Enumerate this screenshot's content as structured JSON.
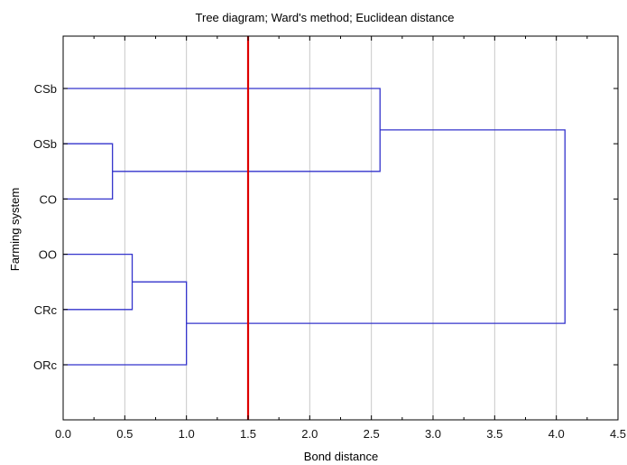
{
  "chart_data": {
    "type": "dendrogram",
    "title": "Tree diagram; Ward's method; Euclidean distance",
    "xlabel": "Bond distance",
    "ylabel": "Farming system",
    "xlim": [
      0.0,
      4.5
    ],
    "x_ticks": [
      "0.0",
      "0.5",
      "1.0",
      "1.5",
      "2.0",
      "2.5",
      "3.0",
      "3.5",
      "4.0",
      "4.5"
    ],
    "grid": "vertical",
    "leaves": [
      "CSb",
      "OSb",
      "CO",
      "OO",
      "CRc",
      "ORc"
    ],
    "merges": [
      {
        "members": [
          "OSb",
          "CO"
        ],
        "height": 0.4
      },
      {
        "members": [
          "OO",
          "CRc"
        ],
        "height": 0.56
      },
      {
        "members": [
          "OO+CRc",
          "ORc"
        ],
        "height": 1.0
      },
      {
        "members": [
          "CSb",
          "OSb+CO"
        ],
        "height": 2.57
      },
      {
        "members": [
          "CSb+OSb+CO",
          "OO+CRc+ORc"
        ],
        "height": 4.07
      }
    ],
    "cut_line": {
      "value": 1.5
    },
    "colors": {
      "tree": "#3333cc",
      "cut_line": "#dd0000",
      "grid": "#c8c8c8",
      "frame": "#000000"
    }
  }
}
